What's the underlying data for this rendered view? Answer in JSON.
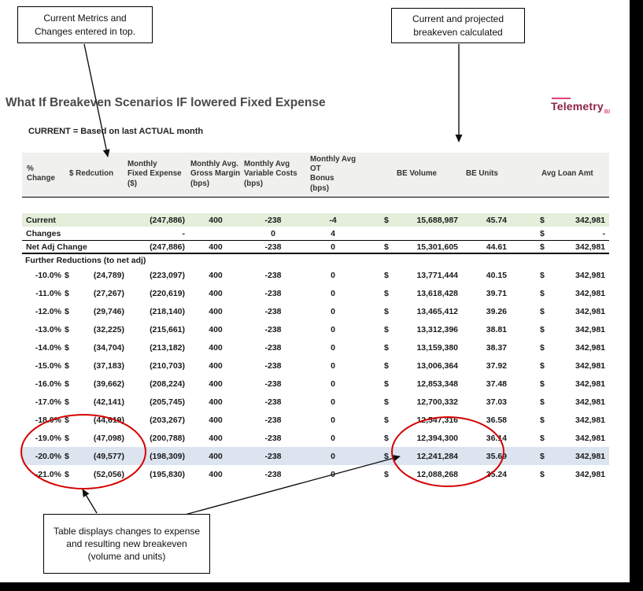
{
  "page": {
    "title": "What If Breakeven Scenarios IF lowered Fixed Expense",
    "subtitle": "CURRENT = Based on last ACTUAL month",
    "logo": "Telemetry",
    "logo_sub": "BI"
  },
  "callouts": {
    "top_left": "Current Metrics and Changes entered in top.",
    "top_right": "Current and projected breakeven calculated",
    "bottom": "Table displays changes to expense and resulting new breakeven (volume and units)"
  },
  "colors": {
    "accent_red": "#d40000",
    "highlight_row": "#dce4f0",
    "current_row": "#e4eedb",
    "header_bg": "#f0f0ee",
    "logo_maroon": "#8e2344",
    "logo_pink": "#e0427a"
  },
  "table": {
    "headers": [
      "% Change",
      "$ Redcution",
      "Monthly\nFixed Expense\n($)",
      "Monthly Avg.\nGross Margin\n(bps)",
      "Monthly Avg\nVariable Costs\n(bps)",
      "Monthly Avg OT\nBonus\n(bps)",
      "BE Volume",
      "BE Units",
      "Avg Loan Amt"
    ],
    "special_rows": [
      {
        "id": "current",
        "cls": "row-current",
        "label": "Current",
        "fixed": "(247,886)",
        "gm": "400",
        "vc": "-238",
        "ot": "-4",
        "be_d": "$",
        "vol": "15,688,987",
        "units": "45.74",
        "loan_d": "$",
        "loan": "342,981"
      },
      {
        "id": "changes",
        "cls": "row-changes",
        "label": "Changes",
        "fixed": "-",
        "gm": "",
        "vc": "0",
        "ot": "4",
        "be_d": "",
        "vol": "",
        "units": "",
        "loan_d": "$",
        "loan": "-"
      },
      {
        "id": "net-adj",
        "cls": "row-net",
        "label": "Net Adj Change",
        "fixed": "(247,886)",
        "gm": "400",
        "vc": "-238",
        "ot": "0",
        "be_d": "$",
        "vol": "15,301,605",
        "units": "44.61",
        "loan_d": "$",
        "loan": "342,981"
      }
    ],
    "section_label": "Further Reductions (to net adj)",
    "scenario_constants": {
      "dollar": "$",
      "gross_margin": "400",
      "variable_costs": "-238",
      "ot_bonus": "0",
      "avg_loan_amt": "342,981"
    },
    "scenarios": [
      {
        "pct": "-10.0%",
        "reduction": "(24,789)",
        "fixed_expense": "(223,097)",
        "be_volume": "13,771,444",
        "be_units": "40.15"
      },
      {
        "pct": "-11.0%",
        "reduction": "(27,267)",
        "fixed_expense": "(220,619)",
        "be_volume": "13,618,428",
        "be_units": "39.71"
      },
      {
        "pct": "-12.0%",
        "reduction": "(29,746)",
        "fixed_expense": "(218,140)",
        "be_volume": "13,465,412",
        "be_units": "39.26"
      },
      {
        "pct": "-13.0%",
        "reduction": "(32,225)",
        "fixed_expense": "(215,661)",
        "be_volume": "13,312,396",
        "be_units": "38.81"
      },
      {
        "pct": "-14.0%",
        "reduction": "(34,704)",
        "fixed_expense": "(213,182)",
        "be_volume": "13,159,380",
        "be_units": "38.37"
      },
      {
        "pct": "-15.0%",
        "reduction": "(37,183)",
        "fixed_expense": "(210,703)",
        "be_volume": "13,006,364",
        "be_units": "37.92"
      },
      {
        "pct": "-16.0%",
        "reduction": "(39,662)",
        "fixed_expense": "(208,224)",
        "be_volume": "12,853,348",
        "be_units": "37.48"
      },
      {
        "pct": "-17.0%",
        "reduction": "(42,141)",
        "fixed_expense": "(205,745)",
        "be_volume": "12,700,332",
        "be_units": "37.03"
      },
      {
        "pct": "-18.0%",
        "reduction": "(44,619)",
        "fixed_expense": "(203,267)",
        "be_volume": "12,547,316",
        "be_units": "36.58"
      },
      {
        "pct": "-19.0%",
        "reduction": "(47,098)",
        "fixed_expense": "(200,788)",
        "be_volume": "12,394,300",
        "be_units": "36.14"
      },
      {
        "pct": "-20.0%",
        "reduction": "(49,577)",
        "fixed_expense": "(198,309)",
        "be_volume": "12,241,284",
        "be_units": "35.69"
      },
      {
        "pct": "-21.0%",
        "reduction": "(52,056)",
        "fixed_expense": "(195,830)",
        "be_volume": "12,088,268",
        "be_units": "35.24"
      }
    ],
    "highlight_index": 10
  }
}
